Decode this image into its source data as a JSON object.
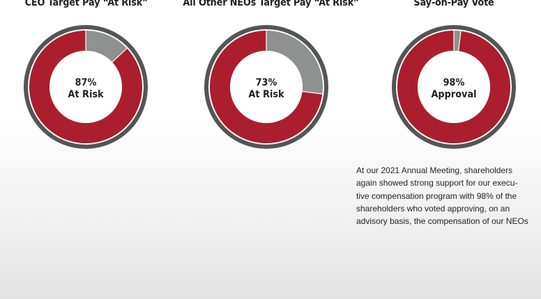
{
  "colors": {
    "at_risk": "#ab1e2d",
    "remainder": "#8f9090",
    "outer_ring": "#555555"
  },
  "note_text": "At our 2021 Annual Meeting, shareholders again showed strong support for our execu-tive compensation program with 98% of the shareholders who voted approving, on an advisory basis, the compensation of our NEOs",
  "chart_data": [
    {
      "type": "pie",
      "title": "CEO Target Pay “At Risk”",
      "center_value": "87%",
      "center_text": "At Risk",
      "slices": [
        {
          "value": 87,
          "color": "#ab1e2d"
        },
        {
          "value": 13,
          "color": "#8f9090"
        }
      ]
    },
    {
      "type": "pie",
      "title": "All Other NEOs Target Pay “At Risk”",
      "center_value": "73%",
      "center_text": "At Risk",
      "slices": [
        {
          "value": 73,
          "color": "#ab1e2d"
        },
        {
          "value": 27,
          "color": "#8f9090"
        }
      ]
    },
    {
      "type": "pie",
      "title": "Say-on-Pay Vote",
      "center_value": "98%",
      "center_text": "Approval",
      "slices": [
        {
          "value": 98,
          "color": "#ab1e2d"
        },
        {
          "value": 2,
          "color": "#8f9090"
        }
      ]
    }
  ]
}
